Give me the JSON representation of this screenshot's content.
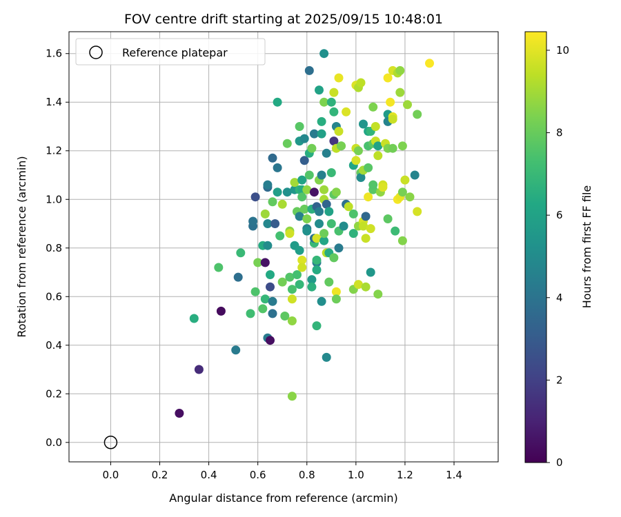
{
  "chart_data": {
    "type": "scatter",
    "title": "FOV centre drift starting at 2025/09/15 10:48:01",
    "xlabel": "Angular distance from reference (arcmin)",
    "ylabel": "Rotation from reference (arcmin)",
    "xlim": [
      -0.17,
      1.58
    ],
    "ylim": [
      -0.08,
      1.69
    ],
    "xticks": [
      "0.0",
      "0.2",
      "0.4",
      "0.6",
      "0.8",
      "1.0",
      "1.2",
      "1.4"
    ],
    "yticks": [
      "0.0",
      "0.2",
      "0.4",
      "0.6",
      "0.8",
      "1.0",
      "1.2",
      "1.4",
      "1.6"
    ],
    "grid": true,
    "legend": {
      "position": "top-left",
      "entries": [
        "Reference platepar"
      ]
    },
    "reference": {
      "x": 0.0,
      "y": 0.0
    },
    "colorbar": {
      "label": "Hours from first FF file",
      "range": [
        0,
        10.45
      ],
      "ticks": [
        "0",
        "2",
        "4",
        "6",
        "8",
        "10"
      ],
      "colormap": "viridis"
    },
    "points": [
      [
        0.28,
        0.12,
        0.4
      ],
      [
        0.36,
        0.3,
        1.3
      ],
      [
        0.45,
        0.54,
        0.3
      ],
      [
        0.34,
        0.51,
        6.5
      ],
      [
        0.44,
        0.72,
        7.5
      ],
      [
        0.51,
        0.38,
        4.3
      ],
      [
        0.52,
        0.68,
        3.8
      ],
      [
        0.53,
        0.78,
        7.0
      ],
      [
        0.57,
        0.53,
        7.2
      ],
      [
        0.58,
        0.89,
        3.9
      ],
      [
        0.58,
        0.91,
        4.0
      ],
      [
        0.59,
        0.62,
        7.5
      ],
      [
        0.59,
        1.01,
        2.5
      ],
      [
        0.6,
        0.74,
        8.3
      ],
      [
        0.62,
        0.55,
        7.6
      ],
      [
        0.62,
        0.81,
        6.4
      ],
      [
        0.63,
        0.74,
        0.5
      ],
      [
        0.63,
        0.59,
        6.9
      ],
      [
        0.63,
        0.94,
        8.9
      ],
      [
        0.64,
        0.9,
        4.8
      ],
      [
        0.64,
        0.81,
        5.0
      ],
      [
        0.64,
        1.05,
        3.6
      ],
      [
        0.64,
        1.06,
        4.4
      ],
      [
        0.64,
        0.43,
        4.3
      ],
      [
        0.65,
        0.64,
        2.4
      ],
      [
        0.65,
        0.69,
        6.3
      ],
      [
        0.65,
        0.42,
        0.4
      ],
      [
        0.66,
        0.99,
        7.9
      ],
      [
        0.66,
        0.58,
        4.3
      ],
      [
        0.66,
        0.53,
        3.9
      ],
      [
        0.66,
        1.17,
        3.6
      ],
      [
        0.67,
        0.9,
        3.0
      ],
      [
        0.68,
        1.13,
        4.1
      ],
      [
        0.68,
        1.4,
        6.3
      ],
      [
        0.68,
        1.03,
        5.8
      ],
      [
        0.69,
        0.85,
        7.3
      ],
      [
        0.7,
        0.98,
        9.1
      ],
      [
        0.7,
        0.66,
        8.2
      ],
      [
        0.71,
        0.52,
        7.8
      ],
      [
        0.72,
        1.23,
        8.0
      ],
      [
        0.72,
        1.03,
        5.2
      ],
      [
        0.73,
        0.87,
        8.7
      ],
      [
        0.73,
        0.86,
        9.7
      ],
      [
        0.73,
        0.68,
        7.6
      ],
      [
        0.74,
        0.59,
        9.7
      ],
      [
        0.74,
        0.63,
        7.4
      ],
      [
        0.74,
        0.5,
        8.7
      ],
      [
        0.74,
        0.19,
        8.6
      ],
      [
        0.75,
        1.04,
        5.5
      ],
      [
        0.75,
        1.07,
        9.0
      ],
      [
        0.75,
        0.81,
        5.7
      ],
      [
        0.76,
        0.69,
        7.3
      ],
      [
        0.76,
        0.95,
        8.0
      ],
      [
        0.77,
        0.65,
        6.9
      ],
      [
        0.77,
        0.93,
        4.5
      ],
      [
        0.77,
        0.79,
        5.8
      ],
      [
        0.77,
        1.24,
        5.5
      ],
      [
        0.77,
        1.04,
        6.7
      ],
      [
        0.77,
        1.3,
        7.7
      ],
      [
        0.78,
        1.08,
        6.0
      ],
      [
        0.78,
        1.04,
        6.4
      ],
      [
        0.78,
        1.01,
        7.6
      ],
      [
        0.78,
        0.75,
        9.9
      ],
      [
        0.78,
        0.72,
        9.7
      ],
      [
        0.79,
        1.25,
        4.8
      ],
      [
        0.79,
        1.16,
        3.1
      ],
      [
        0.79,
        0.96,
        8.0
      ],
      [
        0.8,
        1.04,
        8.7
      ],
      [
        0.8,
        0.92,
        8.4
      ],
      [
        0.8,
        0.88,
        4.5
      ],
      [
        0.8,
        0.87,
        5.2
      ],
      [
        0.81,
        1.53,
        3.8
      ],
      [
        0.81,
        1.1,
        7.6
      ],
      [
        0.81,
        1.19,
        6.5
      ],
      [
        0.82,
        1.21,
        8.2
      ],
      [
        0.82,
        0.67,
        5.6
      ],
      [
        0.82,
        0.64,
        6.6
      ],
      [
        0.82,
        0.96,
        6.6
      ],
      [
        0.83,
        1.03,
        0.5
      ],
      [
        0.83,
        0.82,
        7.0
      ],
      [
        0.83,
        0.84,
        3.9
      ],
      [
        0.83,
        1.27,
        4.3
      ],
      [
        0.84,
        0.74,
        4.3
      ],
      [
        0.84,
        0.75,
        6.9
      ],
      [
        0.84,
        0.71,
        6.4
      ],
      [
        0.84,
        0.48,
        6.8
      ],
      [
        0.84,
        0.97,
        3.3
      ],
      [
        0.84,
        0.84,
        9.8
      ],
      [
        0.85,
        1.45,
        6.0
      ],
      [
        0.85,
        0.9,
        5.0
      ],
      [
        0.85,
        1.08,
        8.5
      ],
      [
        0.85,
        0.95,
        4.4
      ],
      [
        0.86,
        0.58,
        5.1
      ],
      [
        0.86,
        1.32,
        6.5
      ],
      [
        0.86,
        1.27,
        5.9
      ],
      [
        0.86,
        1.1,
        4.5
      ],
      [
        0.87,
        1.0,
        9.1
      ],
      [
        0.87,
        1.4,
        8.4
      ],
      [
        0.87,
        1.04,
        8.9
      ],
      [
        0.87,
        0.83,
        6.2
      ],
      [
        0.87,
        1.6,
        5.2
      ],
      [
        0.87,
        0.86,
        8.1
      ],
      [
        0.88,
        0.78,
        9.3
      ],
      [
        0.88,
        0.35,
        4.9
      ],
      [
        0.88,
        1.19,
        4.5
      ],
      [
        0.88,
        0.98,
        3.4
      ],
      [
        0.89,
        0.95,
        6.0
      ],
      [
        0.89,
        0.66,
        7.9
      ],
      [
        0.89,
        0.78,
        6.4
      ],
      [
        0.9,
        1.4,
        6.7
      ],
      [
        0.9,
        1.11,
        7.0
      ],
      [
        0.9,
        0.9,
        7.2
      ],
      [
        0.91,
        1.44,
        9.6
      ],
      [
        0.91,
        0.76,
        7.9
      ],
      [
        0.91,
        1.24,
        1.6
      ],
      [
        0.91,
        1.02,
        7.8
      ],
      [
        0.91,
        1.36,
        6.8
      ],
      [
        0.92,
        0.62,
        10.2
      ],
      [
        0.92,
        1.03,
        8.5
      ],
      [
        0.92,
        0.59,
        8.1
      ],
      [
        0.92,
        1.21,
        9.4
      ],
      [
        0.92,
        1.3,
        4.7
      ],
      [
        0.93,
        1.5,
        10.1
      ],
      [
        0.93,
        1.28,
        9.6
      ],
      [
        0.93,
        0.87,
        7.4
      ],
      [
        0.93,
        0.8,
        4.3
      ],
      [
        0.94,
        1.22,
        7.1
      ],
      [
        0.94,
        1.22,
        8.3
      ],
      [
        0.95,
        0.89,
        5.0
      ],
      [
        0.96,
        1.36,
        9.9
      ],
      [
        0.96,
        0.98,
        3.9
      ],
      [
        0.97,
        0.97,
        9.4
      ],
      [
        0.99,
        1.14,
        6.2
      ],
      [
        0.99,
        0.63,
        8.5
      ],
      [
        0.99,
        0.86,
        6.7
      ],
      [
        0.99,
        0.94,
        7.5
      ],
      [
        1.0,
        1.16,
        9.8
      ],
      [
        1.0,
        1.21,
        9.6
      ],
      [
        1.0,
        1.47,
        9.9
      ],
      [
        1.01,
        1.46,
        9.2
      ],
      [
        1.01,
        0.89,
        8.7
      ],
      [
        1.01,
        0.65,
        9.7
      ],
      [
        1.01,
        1.2,
        8.3
      ],
      [
        1.02,
        1.11,
        8.0
      ],
      [
        1.02,
        1.09,
        5.0
      ],
      [
        1.02,
        1.48,
        9.4
      ],
      [
        1.03,
        0.91,
        9.8
      ],
      [
        1.03,
        1.31,
        5.4
      ],
      [
        1.03,
        1.12,
        9.0
      ],
      [
        1.03,
        0.89,
        9.5
      ],
      [
        1.04,
        0.93,
        3.5
      ],
      [
        1.04,
        0.84,
        9.6
      ],
      [
        1.04,
        0.64,
        9.1
      ],
      [
        1.05,
        1.01,
        10.2
      ],
      [
        1.05,
        1.28,
        6.2
      ],
      [
        1.05,
        1.22,
        7.4
      ],
      [
        1.05,
        1.13,
        7.7
      ],
      [
        1.06,
        0.88,
        9.7
      ],
      [
        1.06,
        1.28,
        6.8
      ],
      [
        1.06,
        0.7,
        5.5
      ],
      [
        1.07,
        1.23,
        7.8
      ],
      [
        1.07,
        1.04,
        7.7
      ],
      [
        1.07,
        1.38,
        8.4
      ],
      [
        1.07,
        1.06,
        7.6
      ],
      [
        1.08,
        1.3,
        9.5
      ],
      [
        1.08,
        1.24,
        9.6
      ],
      [
        1.09,
        1.18,
        9.4
      ],
      [
        1.09,
        1.22,
        6.0
      ],
      [
        1.09,
        0.61,
        8.5
      ],
      [
        1.1,
        1.03,
        8.7
      ],
      [
        1.11,
        1.06,
        9.7
      ],
      [
        1.11,
        1.05,
        9.9
      ],
      [
        1.12,
        1.23,
        9.6
      ],
      [
        1.13,
        1.5,
        10.3
      ],
      [
        1.13,
        1.21,
        8.4
      ],
      [
        1.13,
        1.35,
        5.7
      ],
      [
        1.13,
        0.92,
        7.8
      ],
      [
        1.13,
        1.32,
        4.7
      ],
      [
        1.14,
        1.4,
        10.3
      ],
      [
        1.15,
        1.53,
        9.8
      ],
      [
        1.15,
        1.21,
        8.2
      ],
      [
        1.15,
        1.34,
        10.0
      ],
      [
        1.15,
        1.33,
        9.6
      ],
      [
        1.16,
        0.87,
        7.1
      ],
      [
        1.17,
        1.0,
        10.3
      ],
      [
        1.17,
        1.52,
        9.2
      ],
      [
        1.18,
        1.44,
        8.9
      ],
      [
        1.18,
        1.53,
        8.7
      ],
      [
        1.18,
        1.01,
        10.1
      ],
      [
        1.19,
        1.22,
        8.4
      ],
      [
        1.19,
        1.03,
        8.3
      ],
      [
        1.19,
        0.83,
        8.5
      ],
      [
        1.2,
        1.08,
        9.6
      ],
      [
        1.21,
        1.39,
        8.9
      ],
      [
        1.22,
        1.01,
        8.6
      ],
      [
        1.24,
        1.1,
        4.7
      ],
      [
        1.25,
        1.35,
        8.2
      ],
      [
        1.25,
        0.95,
        9.8
      ],
      [
        1.3,
        1.56,
        10.4
      ]
    ]
  }
}
